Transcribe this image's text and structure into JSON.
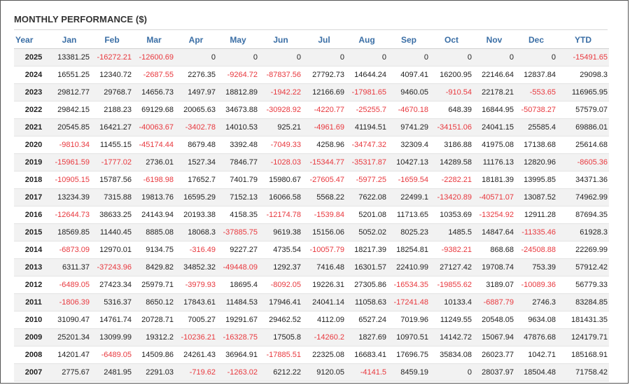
{
  "title": "MONTHLY PERFORMANCE ($)",
  "colors": {
    "header": "#3a6ea5",
    "negative": "#e8383e",
    "stripe": "#f2f2f2"
  },
  "headers": [
    "Year",
    "Jan",
    "Feb",
    "Mar",
    "Apr",
    "May",
    "Jun",
    "Jul",
    "Aug",
    "Sep",
    "Oct",
    "Nov",
    "Dec",
    "YTD"
  ],
  "rows": [
    {
      "year": "2025",
      "values": [
        "13381.25",
        "-16272.21",
        "-12600.69",
        "0",
        "0",
        "0",
        "0",
        "0",
        "0",
        "0",
        "0",
        "0",
        "-15491.65"
      ]
    },
    {
      "year": "2024",
      "values": [
        "16551.25",
        "12340.72",
        "-2687.55",
        "2276.35",
        "-9264.72",
        "-87837.56",
        "27792.73",
        "14644.24",
        "4097.41",
        "16200.95",
        "22146.64",
        "12837.84",
        "29098.3"
      ]
    },
    {
      "year": "2023",
      "values": [
        "29812.77",
        "29768.7",
        "14656.73",
        "1497.97",
        "18812.89",
        "-1942.22",
        "12166.69",
        "-17981.65",
        "9460.05",
        "-910.54",
        "22178.21",
        "-553.65",
        "116965.95"
      ]
    },
    {
      "year": "2022",
      "values": [
        "29842.15",
        "2188.23",
        "69129.68",
        "20065.63",
        "34673.88",
        "-30928.92",
        "-4220.77",
        "-25255.7",
        "-4670.18",
        "648.39",
        "16844.95",
        "-50738.27",
        "57579.07"
      ]
    },
    {
      "year": "2021",
      "values": [
        "20545.85",
        "16421.27",
        "-40063.67",
        "-3402.78",
        "14010.53",
        "925.21",
        "-4961.69",
        "41194.51",
        "9741.29",
        "-34151.06",
        "24041.15",
        "25585.4",
        "69886.01"
      ]
    },
    {
      "year": "2020",
      "values": [
        "-9810.34",
        "11455.15",
        "-45174.44",
        "8679.48",
        "3392.48",
        "-7049.33",
        "4258.96",
        "-34747.32",
        "32309.4",
        "3186.88",
        "41975.08",
        "17138.68",
        "25614.68"
      ]
    },
    {
      "year": "2019",
      "values": [
        "-15961.59",
        "-1777.02",
        "2736.01",
        "1527.34",
        "7846.77",
        "-1028.03",
        "-15344.77",
        "-35317.87",
        "10427.13",
        "14289.58",
        "11176.13",
        "12820.96",
        "-8605.36"
      ]
    },
    {
      "year": "2018",
      "values": [
        "-10905.15",
        "15787.56",
        "-6198.98",
        "17652.7",
        "7401.79",
        "15980.67",
        "-27605.47",
        "-5977.25",
        "-1659.54",
        "-2282.21",
        "18181.39",
        "13995.85",
        "34371.36"
      ]
    },
    {
      "year": "2017",
      "values": [
        "13234.39",
        "7315.88",
        "19813.76",
        "16595.29",
        "7152.13",
        "16066.58",
        "5568.22",
        "7622.08",
        "22499.1",
        "-13420.89",
        "-40571.07",
        "13087.52",
        "74962.99"
      ]
    },
    {
      "year": "2016",
      "values": [
        "-12644.73",
        "38633.25",
        "24143.94",
        "20193.38",
        "4158.35",
        "-12174.78",
        "-1539.84",
        "5201.08",
        "11713.65",
        "10353.69",
        "-13254.92",
        "12911.28",
        "87694.35"
      ]
    },
    {
      "year": "2015",
      "values": [
        "18569.85",
        "11440.45",
        "8885.08",
        "18068.3",
        "-37885.75",
        "9619.38",
        "15156.06",
        "5052.02",
        "8025.23",
        "1485.5",
        "14847.64",
        "-11335.46",
        "61928.3"
      ]
    },
    {
      "year": "2014",
      "values": [
        "-6873.09",
        "12970.01",
        "9134.75",
        "-316.49",
        "9227.27",
        "4735.54",
        "-10057.79",
        "18217.39",
        "18254.81",
        "-9382.21",
        "868.68",
        "-24508.88",
        "22269.99"
      ]
    },
    {
      "year": "2013",
      "values": [
        "6311.37",
        "-37243.96",
        "8429.82",
        "34852.32",
        "-49448.09",
        "1292.37",
        "7416.48",
        "16301.57",
        "22410.99",
        "27127.42",
        "19708.74",
        "753.39",
        "57912.42"
      ]
    },
    {
      "year": "2012",
      "values": [
        "-6489.05",
        "27423.34",
        "25979.71",
        "-3979.93",
        "18695.4",
        "-8092.05",
        "19226.31",
        "27305.86",
        "-16534.35",
        "-19855.62",
        "3189.07",
        "-10089.36",
        "56779.33"
      ]
    },
    {
      "year": "2011",
      "values": [
        "-1806.39",
        "5316.37",
        "8650.12",
        "17843.61",
        "11484.53",
        "17946.41",
        "24041.14",
        "11058.63",
        "-17241.48",
        "10133.4",
        "-6887.79",
        "2746.3",
        "83284.85"
      ]
    },
    {
      "year": "2010",
      "values": [
        "31090.47",
        "14761.74",
        "20728.71",
        "7005.27",
        "19291.67",
        "29462.52",
        "4112.09",
        "6527.24",
        "7019.96",
        "11249.55",
        "20548.05",
        "9634.08",
        "181431.35"
      ]
    },
    {
      "year": "2009",
      "values": [
        "25201.34",
        "13099.99",
        "19312.2",
        "-10236.21",
        "-16328.75",
        "17505.8",
        "-14260.2",
        "1827.69",
        "10970.51",
        "14142.72",
        "15067.94",
        "47876.68",
        "124179.71"
      ]
    },
    {
      "year": "2008",
      "values": [
        "14201.47",
        "-6489.05",
        "14509.86",
        "24261.43",
        "36964.91",
        "-17885.51",
        "22325.08",
        "16683.41",
        "17696.75",
        "35834.08",
        "26023.77",
        "1042.71",
        "185168.91"
      ]
    },
    {
      "year": "2007",
      "values": [
        "2775.67",
        "2481.95",
        "2291.03",
        "-719.62",
        "-1263.02",
        "6212.22",
        "9120.05",
        "-4141.5",
        "8459.19",
        "0",
        "28037.97",
        "18504.48",
        "71758.42"
      ]
    }
  ]
}
